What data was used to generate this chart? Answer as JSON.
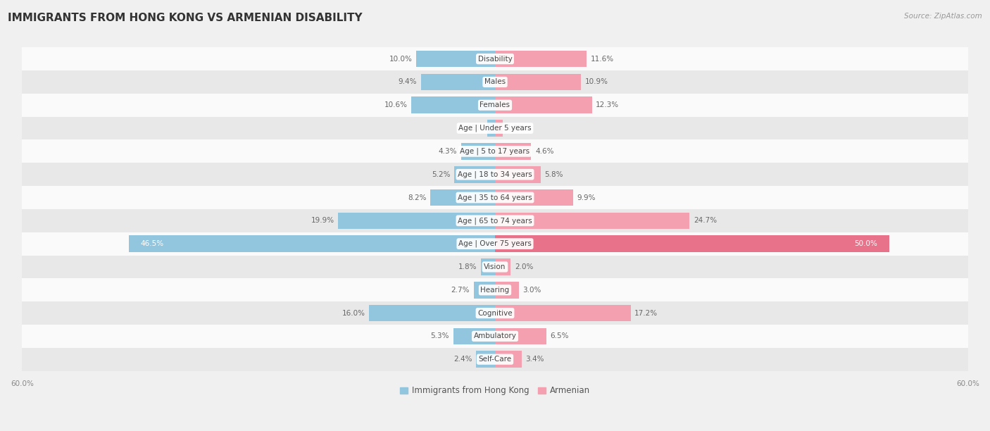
{
  "title": "IMMIGRANTS FROM HONG KONG VS ARMENIAN DISABILITY",
  "source": "Source: ZipAtlas.com",
  "categories": [
    "Disability",
    "Males",
    "Females",
    "Age | Under 5 years",
    "Age | 5 to 17 years",
    "Age | 18 to 34 years",
    "Age | 35 to 64 years",
    "Age | 65 to 74 years",
    "Age | Over 75 years",
    "Vision",
    "Hearing",
    "Cognitive",
    "Ambulatory",
    "Self-Care"
  ],
  "hk_values": [
    10.0,
    9.4,
    10.6,
    0.95,
    4.3,
    5.2,
    8.2,
    19.9,
    46.5,
    1.8,
    2.7,
    16.0,
    5.3,
    2.4
  ],
  "arm_values": [
    11.6,
    10.9,
    12.3,
    1.0,
    4.6,
    5.8,
    9.9,
    24.7,
    50.0,
    2.0,
    3.0,
    17.2,
    6.5,
    3.4
  ],
  "hk_color": "#92C5DE",
  "arm_color": "#F4A0B0",
  "arm_color_dark": "#E8728A",
  "hk_label": "Immigrants from Hong Kong",
  "arm_label": "Armenian",
  "axis_max": 60.0,
  "bg_color": "#f0f0f0",
  "row_bg_light": "#fafafa",
  "row_bg_dark": "#e8e8e8",
  "title_fontsize": 11,
  "label_fontsize": 7.5,
  "value_fontsize": 7.5,
  "legend_fontsize": 8.5,
  "axis_label_fontsize": 7.5
}
